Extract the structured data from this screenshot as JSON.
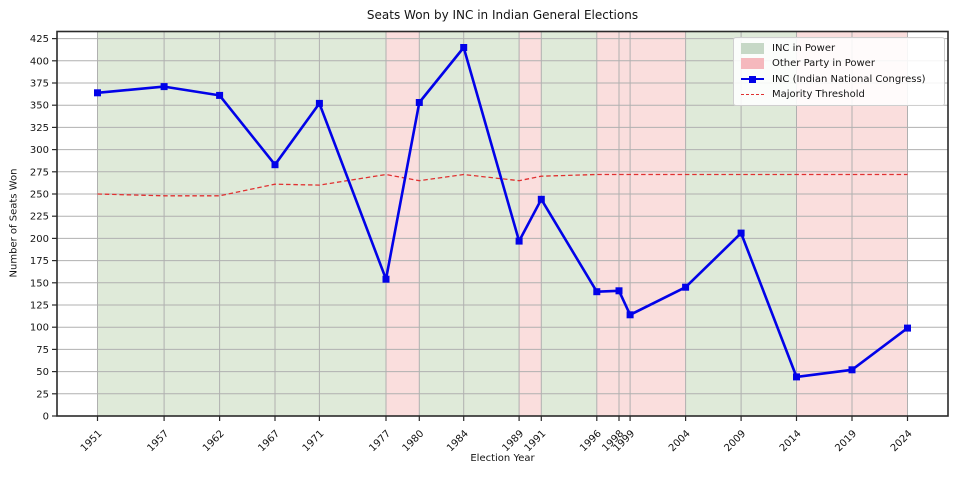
{
  "chart_data": {
    "type": "line",
    "title": "Seats Won by INC in Indian General Elections",
    "xlabel": "Election Year",
    "ylabel": "Number of Seats Won",
    "x": [
      1951,
      1957,
      1962,
      1967,
      1971,
      1977,
      1980,
      1984,
      1989,
      1991,
      1996,
      1998,
      1999,
      2004,
      2009,
      2014,
      2019,
      2024
    ],
    "series": [
      {
        "name": "INC (Indian National Congress)",
        "type": "line",
        "marker": "square",
        "color": "#0202e8",
        "values": [
          364,
          371,
          361,
          283,
          352,
          154,
          353,
          415,
          197,
          244,
          140,
          141,
          114,
          145,
          206,
          44,
          52,
          99
        ]
      },
      {
        "name": "Majority Threshold",
        "type": "line",
        "style": "dashed",
        "color": "#e03131",
        "values": [
          250,
          248,
          248,
          261,
          260,
          272,
          265,
          272,
          265,
          270,
          272,
          272,
          272,
          272,
          272,
          272,
          272,
          272
        ]
      }
    ],
    "bands": [
      {
        "party": "inc",
        "label": "INC in Power",
        "from": 1951,
        "to": 1977
      },
      {
        "party": "other",
        "label": "Other Party in Power",
        "from": 1977,
        "to": 1980
      },
      {
        "party": "inc",
        "label": "INC in Power",
        "from": 1980,
        "to": 1989
      },
      {
        "party": "other",
        "label": "Other Party in Power",
        "from": 1989,
        "to": 1991
      },
      {
        "party": "inc",
        "label": "INC in Power",
        "from": 1991,
        "to": 1996
      },
      {
        "party": "other",
        "label": "Other Party in Power",
        "from": 1996,
        "to": 2004
      },
      {
        "party": "inc",
        "label": "INC in Power",
        "from": 2004,
        "to": 2014
      },
      {
        "party": "other",
        "label": "Other Party in Power",
        "from": 2014,
        "to": 2024
      }
    ],
    "colors": {
      "inc_band": "#dfead9",
      "other_band": "#fadedd",
      "inc_legend_patch": "#c6d8c6",
      "other_legend_patch": "#f5b8bd",
      "line": "#0202e8",
      "threshold": "#e03131",
      "grid": "#b0b0b0",
      "spine": "#2a2a2a"
    },
    "xlim": [
      1947.35,
      2027.65
    ],
    "ylim": [
      0,
      433
    ],
    "yticks": [
      0,
      25,
      50,
      75,
      100,
      125,
      150,
      175,
      200,
      225,
      250,
      275,
      300,
      325,
      350,
      375,
      400,
      425
    ],
    "grid": true,
    "legend_position": "upper right",
    "legend": {
      "items": [
        {
          "label": "INC in Power",
          "swatch": "patch-inc"
        },
        {
          "label": "Other Party in Power",
          "swatch": "patch-other"
        },
        {
          "label": "INC (Indian National Congress)",
          "swatch": "line-marker"
        },
        {
          "label": "Majority Threshold",
          "swatch": "dashed-line"
        }
      ]
    }
  }
}
